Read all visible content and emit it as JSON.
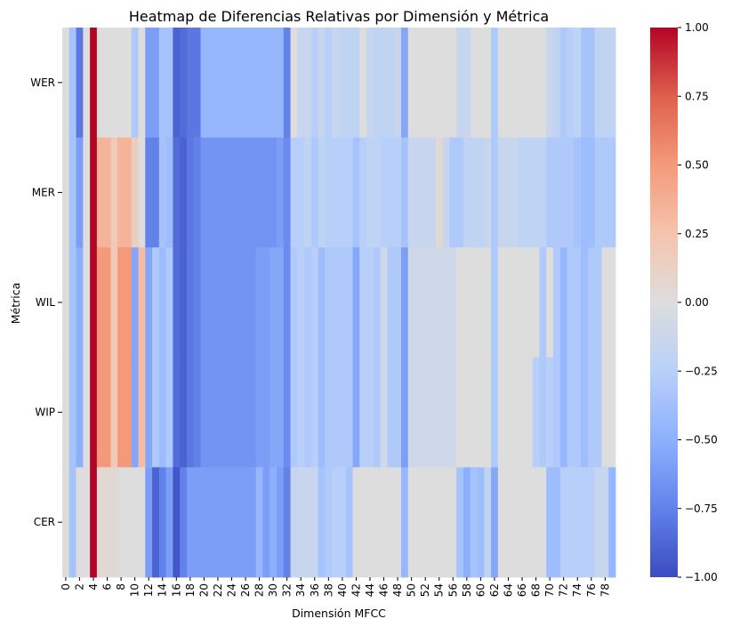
{
  "chart_data": {
    "type": "heatmap",
    "title": "Heatmap de Diferencias Relativas por Dimensión y Métrica",
    "xlabel": "Dimensión MFCC",
    "ylabel": "Métrica",
    "rows": [
      "WER",
      "MER",
      "WIL",
      "WIP",
      "CER"
    ],
    "n_columns": 80,
    "x_tick_labels": [
      "0",
      "2",
      "4",
      "6",
      "8",
      "10",
      "12",
      "14",
      "16",
      "18",
      "20",
      "22",
      "24",
      "26",
      "28",
      "30",
      "32",
      "34",
      "36",
      "38",
      "40",
      "42",
      "44",
      "46",
      "48",
      "50",
      "52",
      "54",
      "56",
      "58",
      "60",
      "62",
      "64",
      "66",
      "68",
      "70",
      "72",
      "74",
      "76",
      "78"
    ],
    "colorbar": {
      "colormap": "coolwarm",
      "vmin": -1.0,
      "vmax": 1.0,
      "tick_labels": [
        "1.00",
        "0.75",
        "0.50",
        "0.25",
        "0.00",
        "−0.25",
        "−0.50",
        "−0.75",
        "−1.00"
      ]
    },
    "values": [
      [
        0.0,
        -0.35,
        -0.8,
        0.0,
        1.0,
        0.0,
        0.0,
        0.0,
        0.0,
        0.0,
        -0.3,
        0.0,
        -0.6,
        -0.6,
        -0.35,
        -0.35,
        -0.9,
        -0.85,
        -0.8,
        -0.8,
        -0.45,
        -0.45,
        -0.45,
        -0.45,
        -0.45,
        -0.45,
        -0.45,
        -0.45,
        -0.45,
        -0.45,
        -0.45,
        -0.45,
        -0.75,
        0.0,
        -0.15,
        -0.15,
        -0.25,
        -0.15,
        -0.25,
        -0.15,
        -0.2,
        -0.2,
        -0.2,
        0.0,
        -0.15,
        -0.2,
        -0.2,
        -0.2,
        -0.15,
        -0.55,
        0.0,
        0.0,
        0.0,
        0.0,
        0.0,
        0.0,
        0.0,
        -0.15,
        -0.15,
        0.0,
        0.0,
        0.0,
        -0.3,
        0.0,
        0.0,
        0.0,
        0.0,
        0.0,
        0.0,
        0.0,
        -0.15,
        -0.2,
        -0.3,
        -0.25,
        -0.2,
        -0.35,
        -0.35,
        -0.2,
        -0.2,
        -0.2
      ],
      [
        0.0,
        -0.35,
        -0.6,
        0.0,
        1.0,
        0.35,
        0.35,
        0.2,
        0.35,
        0.35,
        0.15,
        0.0,
        -0.75,
        -0.75,
        -0.35,
        -0.4,
        -0.85,
        -0.9,
        -0.8,
        -0.75,
        -0.65,
        -0.65,
        -0.65,
        -0.65,
        -0.65,
        -0.65,
        -0.65,
        -0.65,
        -0.65,
        -0.65,
        -0.65,
        -0.6,
        -0.7,
        -0.25,
        -0.25,
        -0.2,
        -0.3,
        -0.2,
        -0.25,
        -0.25,
        -0.25,
        -0.25,
        -0.35,
        -0.25,
        -0.2,
        -0.2,
        -0.25,
        -0.25,
        -0.25,
        -0.35,
        -0.15,
        -0.15,
        -0.15,
        -0.15,
        0.05,
        -0.15,
        -0.3,
        -0.3,
        -0.2,
        -0.2,
        -0.2,
        -0.15,
        -0.3,
        -0.15,
        -0.15,
        -0.15,
        -0.2,
        -0.2,
        -0.2,
        -0.2,
        -0.3,
        -0.3,
        -0.3,
        -0.3,
        -0.35,
        -0.4,
        -0.4,
        -0.3,
        -0.3,
        -0.3
      ],
      [
        0.0,
        -0.35,
        -0.5,
        0.0,
        1.0,
        0.5,
        0.5,
        0.2,
        0.5,
        0.5,
        -0.55,
        0.3,
        -0.55,
        -0.3,
        -0.4,
        -0.3,
        -0.85,
        -0.9,
        -0.8,
        -0.75,
        -0.65,
        -0.65,
        -0.65,
        -0.65,
        -0.65,
        -0.65,
        -0.65,
        -0.65,
        -0.6,
        -0.6,
        -0.55,
        -0.55,
        -0.7,
        -0.3,
        -0.25,
        -0.3,
        -0.25,
        -0.4,
        -0.3,
        -0.3,
        -0.3,
        -0.3,
        -0.55,
        -0.25,
        -0.25,
        -0.3,
        -0.1,
        -0.3,
        -0.3,
        -0.6,
        -0.1,
        -0.1,
        -0.1,
        -0.1,
        -0.1,
        -0.1,
        -0.1,
        0.0,
        0.0,
        0.0,
        0.0,
        0.0,
        -0.3,
        0.0,
        0.0,
        0.0,
        0.0,
        0.0,
        0.0,
        -0.3,
        0.0,
        -0.3,
        -0.45,
        -0.3,
        -0.3,
        -0.4,
        -0.3,
        -0.3,
        0.0,
        0.0
      ],
      [
        0.0,
        -0.35,
        -0.5,
        0.0,
        1.0,
        0.5,
        0.5,
        0.2,
        0.5,
        0.5,
        -0.55,
        0.3,
        -0.55,
        -0.3,
        -0.4,
        -0.3,
        -0.85,
        -0.9,
        -0.8,
        -0.75,
        -0.65,
        -0.65,
        -0.65,
        -0.65,
        -0.65,
        -0.65,
        -0.65,
        -0.65,
        -0.6,
        -0.6,
        -0.55,
        -0.55,
        -0.7,
        -0.3,
        -0.25,
        -0.3,
        -0.25,
        -0.4,
        -0.3,
        -0.3,
        -0.3,
        -0.3,
        -0.55,
        -0.25,
        -0.25,
        -0.3,
        -0.1,
        -0.3,
        -0.3,
        -0.6,
        -0.1,
        -0.1,
        -0.1,
        -0.1,
        -0.1,
        -0.1,
        -0.1,
        0.0,
        0.0,
        0.0,
        0.0,
        0.0,
        -0.3,
        0.0,
        0.0,
        0.0,
        0.0,
        0.0,
        -0.25,
        -0.3,
        -0.25,
        -0.3,
        -0.45,
        -0.3,
        -0.3,
        -0.4,
        -0.3,
        -0.3,
        0.0,
        0.0
      ],
      [
        0.0,
        -0.35,
        0.0,
        0.0,
        1.0,
        0.05,
        0.05,
        0.05,
        0.0,
        0.0,
        0.0,
        0.0,
        -0.6,
        -0.9,
        -0.75,
        -0.6,
        -0.95,
        -0.75,
        -0.6,
        -0.6,
        -0.6,
        -0.6,
        -0.6,
        -0.6,
        -0.6,
        -0.6,
        -0.6,
        -0.6,
        -0.45,
        -0.6,
        -0.5,
        -0.6,
        -0.75,
        -0.15,
        -0.15,
        -0.15,
        -0.15,
        -0.35,
        -0.3,
        -0.25,
        -0.25,
        -0.35,
        0.0,
        0.0,
        0.0,
        0.0,
        0.0,
        0.0,
        0.0,
        -0.45,
        0.0,
        0.0,
        0.0,
        0.0,
        0.0,
        0.0,
        0.0,
        -0.35,
        -0.5,
        -0.35,
        -0.4,
        -0.2,
        -0.55,
        0.0,
        0.0,
        0.0,
        0.0,
        0.0,
        0.0,
        0.0,
        -0.4,
        -0.4,
        -0.25,
        -0.25,
        -0.25,
        -0.25,
        -0.25,
        -0.15,
        -0.15,
        -0.45
      ]
    ]
  }
}
